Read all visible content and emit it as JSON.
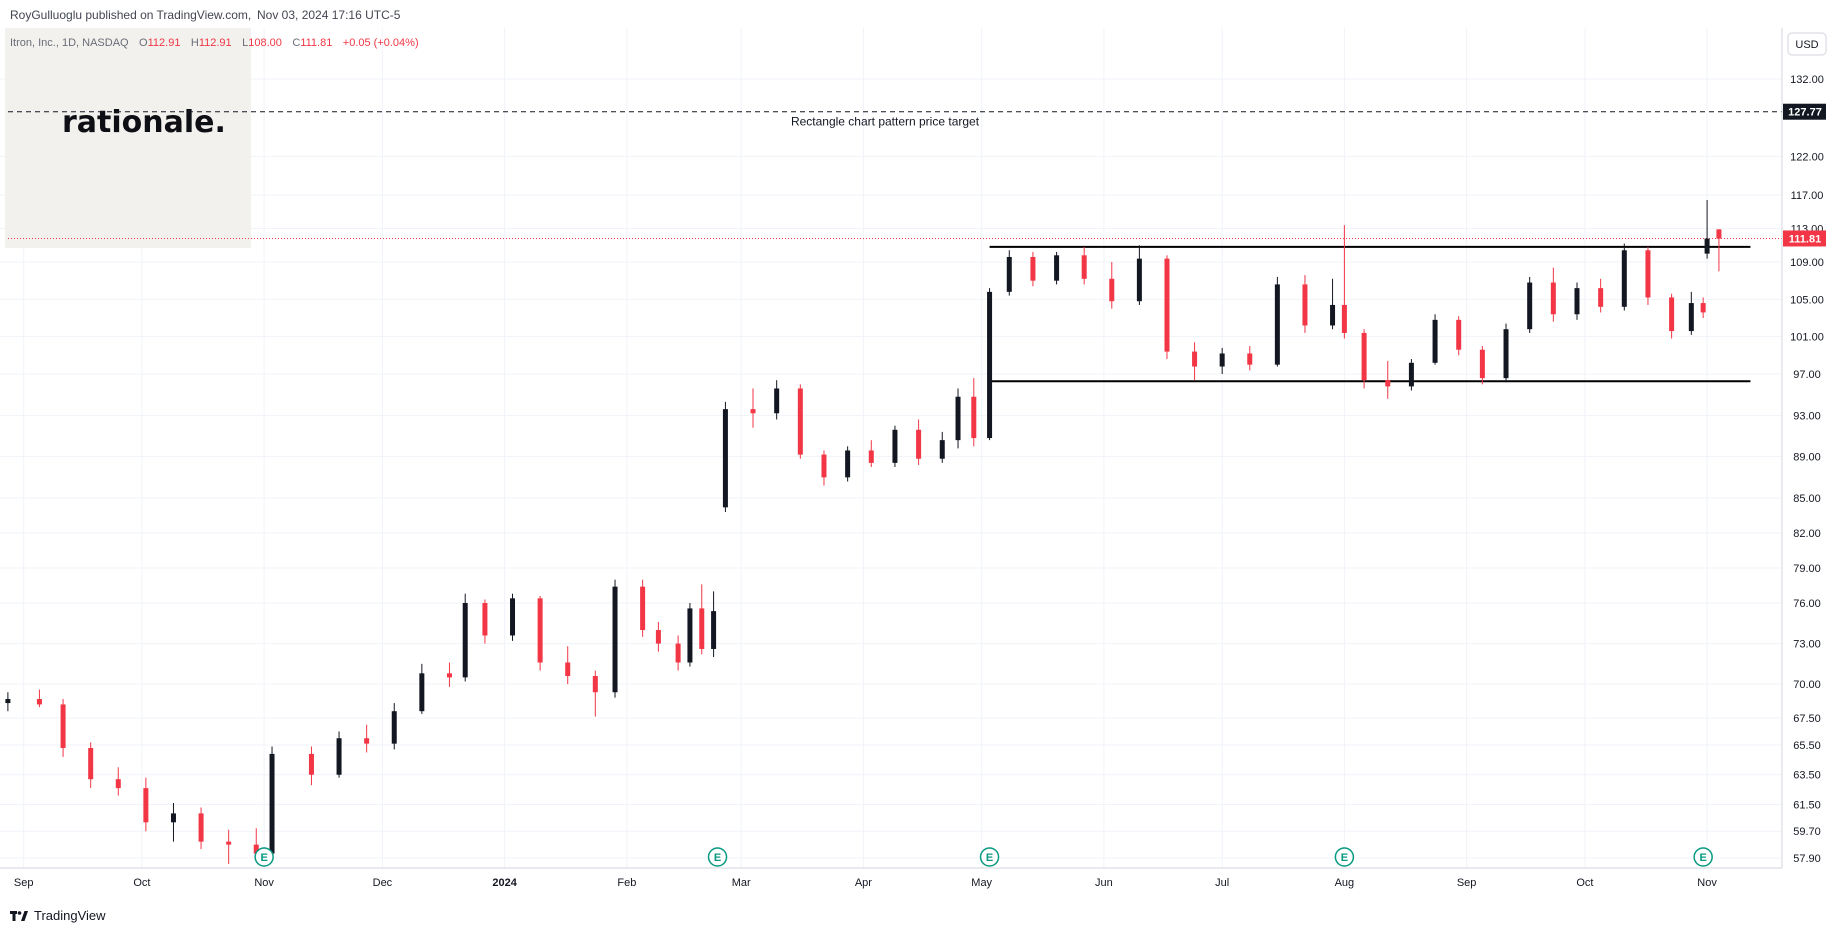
{
  "header": {
    "publisher": "RoyGulluoglu published on TradingView.com,",
    "timestamp": "Nov 03, 2024 17:16 UTC-5"
  },
  "legend": {
    "symbol": "Itron, Inc., 1D, NASDAQ",
    "o_label": "O",
    "o_value": "112.91",
    "h_label": "H",
    "h_value": "112.91",
    "l_label": "L",
    "l_value": "108.00",
    "c_label": "C",
    "c_value": "111.81",
    "change": "+0.05 (+0.04%)"
  },
  "watermark": {
    "text": "rationale."
  },
  "currency": "USD",
  "footer": {
    "brand": "TradingView"
  },
  "colors": {
    "up": "#131722",
    "down": "#f23645",
    "price_line": "#f23645",
    "grid": "#f0f3fa"
  },
  "chart_data": {
    "type": "candlestick",
    "x_range": [
      "2023-08-26",
      "2024-11-20"
    ],
    "y_ticks": [
      "57.90",
      "59.70",
      "61.50",
      "63.50",
      "65.50",
      "67.50",
      "70.00",
      "73.00",
      "76.00",
      "79.00",
      "82.00",
      "85.00",
      "89.00",
      "93.00",
      "97.00",
      "101.00",
      "105.00",
      "109.00",
      "113.00",
      "117.00",
      "122.00",
      "132.00"
    ],
    "x_ticks": [
      {
        "label": "Sep",
        "date": "2023-09-01",
        "bold": false
      },
      {
        "label": "Oct",
        "date": "2023-10-01",
        "bold": false
      },
      {
        "label": "Nov",
        "date": "2023-11-01",
        "bold": false
      },
      {
        "label": "Dec",
        "date": "2023-12-01",
        "bold": false
      },
      {
        "label": "2024",
        "date": "2024-01-01",
        "bold": true
      },
      {
        "label": "Feb",
        "date": "2024-02-01",
        "bold": false
      },
      {
        "label": "Mar",
        "date": "2024-03-01",
        "bold": false
      },
      {
        "label": "Apr",
        "date": "2024-04-01",
        "bold": false
      },
      {
        "label": "May",
        "date": "2024-05-01",
        "bold": false
      },
      {
        "label": "Jun",
        "date": "2024-06-01",
        "bold": false
      },
      {
        "label": "Jul",
        "date": "2024-07-01",
        "bold": false
      },
      {
        "label": "Aug",
        "date": "2024-08-01",
        "bold": false
      },
      {
        "label": "Sep",
        "date": "2024-09-01",
        "bold": false
      },
      {
        "label": "Oct",
        "date": "2024-10-01",
        "bold": false
      },
      {
        "label": "Nov",
        "date": "2024-11-01",
        "bold": false
      }
    ],
    "last_price": 111.81,
    "last_price_label": "111.81",
    "target": {
      "price": 127.77,
      "label": "127.77",
      "text": "Rectangle chart pattern price target"
    },
    "rectangle": {
      "start": "2024-05-03",
      "end": "2024-11-12",
      "top": 110.8,
      "bottom": 96.3
    },
    "earnings": [
      {
        "date": "2023-11-01",
        "label": "E"
      },
      {
        "date": "2024-02-24",
        "label": "E"
      },
      {
        "date": "2024-05-03",
        "label": "E"
      },
      {
        "date": "2024-08-01",
        "label": "E"
      },
      {
        "date": "2024-10-31",
        "label": "E"
      }
    ],
    "series": [
      {
        "date": "2023-08-28",
        "open": 68.6,
        "high": 69.4,
        "low": 68.0,
        "close": 68.9
      },
      {
        "date": "2023-09-05",
        "open": 68.9,
        "high": 69.6,
        "low": 68.3,
        "close": 68.5
      },
      {
        "date": "2023-09-11",
        "open": 68.5,
        "high": 68.9,
        "low": 64.7,
        "close": 65.3
      },
      {
        "date": "2023-09-18",
        "open": 65.3,
        "high": 65.7,
        "low": 62.6,
        "close": 63.2
      },
      {
        "date": "2023-09-25",
        "open": 63.2,
        "high": 64.0,
        "low": 62.1,
        "close": 62.6
      },
      {
        "date": "2023-10-02",
        "open": 62.6,
        "high": 63.3,
        "low": 59.7,
        "close": 60.3
      },
      {
        "date": "2023-10-09",
        "open": 60.3,
        "high": 61.6,
        "low": 59.0,
        "close": 60.9
      },
      {
        "date": "2023-10-16",
        "open": 60.9,
        "high": 61.3,
        "low": 58.5,
        "close": 59.0
      },
      {
        "date": "2023-10-23",
        "open": 59.0,
        "high": 59.8,
        "low": 57.5,
        "close": 58.8
      },
      {
        "date": "2023-10-30",
        "open": 58.8,
        "high": 59.9,
        "low": 57.7,
        "close": 58.2
      },
      {
        "date": "2023-11-03",
        "open": 58.2,
        "high": 65.4,
        "low": 58.0,
        "close": 64.9
      },
      {
        "date": "2023-11-13",
        "open": 64.9,
        "high": 65.4,
        "low": 62.8,
        "close": 63.5
      },
      {
        "date": "2023-11-20",
        "open": 63.5,
        "high": 66.5,
        "low": 63.3,
        "close": 66.0
      },
      {
        "date": "2023-11-27",
        "open": 66.0,
        "high": 67.0,
        "low": 65.0,
        "close": 65.6
      },
      {
        "date": "2023-12-04",
        "open": 65.6,
        "high": 68.6,
        "low": 65.2,
        "close": 68.0
      },
      {
        "date": "2023-12-11",
        "open": 68.0,
        "high": 71.5,
        "low": 67.8,
        "close": 70.8
      },
      {
        "date": "2023-12-18",
        "open": 70.8,
        "high": 71.6,
        "low": 69.8,
        "close": 70.5
      },
      {
        "date": "2023-12-22",
        "open": 70.5,
        "high": 76.8,
        "low": 70.2,
        "close": 76.0
      },
      {
        "date": "2023-12-27",
        "open": 76.0,
        "high": 76.3,
        "low": 73.0,
        "close": 73.6
      },
      {
        "date": "2024-01-03",
        "open": 73.6,
        "high": 76.8,
        "low": 73.2,
        "close": 76.4
      },
      {
        "date": "2024-01-10",
        "open": 76.4,
        "high": 76.6,
        "low": 71.0,
        "close": 71.6
      },
      {
        "date": "2024-01-17",
        "open": 71.6,
        "high": 72.8,
        "low": 70.0,
        "close": 70.6
      },
      {
        "date": "2024-01-24",
        "open": 70.6,
        "high": 71.0,
        "low": 67.6,
        "close": 69.4
      },
      {
        "date": "2024-01-29",
        "open": 69.4,
        "high": 78.0,
        "low": 69.0,
        "close": 77.4
      },
      {
        "date": "2024-02-05",
        "open": 77.4,
        "high": 78.0,
        "low": 73.5,
        "close": 74.0
      },
      {
        "date": "2024-02-09",
        "open": 74.0,
        "high": 74.6,
        "low": 72.4,
        "close": 73.0
      },
      {
        "date": "2024-02-14",
        "open": 73.0,
        "high": 73.6,
        "low": 71.0,
        "close": 71.6
      },
      {
        "date": "2024-02-17",
        "open": 71.6,
        "high": 76.0,
        "low": 71.3,
        "close": 75.6
      },
      {
        "date": "2024-02-20",
        "open": 75.6,
        "high": 77.6,
        "low": 72.2,
        "close": 72.6
      },
      {
        "date": "2024-02-23",
        "open": 72.6,
        "high": 77.0,
        "low": 72.0,
        "close": 75.4
      },
      {
        "date": "2024-02-26",
        "open": 84.2,
        "high": 94.3,
        "low": 83.8,
        "close": 93.6
      },
      {
        "date": "2024-03-04",
        "open": 93.6,
        "high": 95.6,
        "low": 91.8,
        "close": 93.2
      },
      {
        "date": "2024-03-10",
        "open": 93.2,
        "high": 96.4,
        "low": 92.6,
        "close": 95.6
      },
      {
        "date": "2024-03-16",
        "open": 95.6,
        "high": 96.0,
        "low": 88.8,
        "close": 89.2
      },
      {
        "date": "2024-03-22",
        "open": 89.2,
        "high": 89.6,
        "low": 86.2,
        "close": 87.0
      },
      {
        "date": "2024-03-28",
        "open": 87.0,
        "high": 90.0,
        "low": 86.6,
        "close": 89.6
      },
      {
        "date": "2024-04-03",
        "open": 89.6,
        "high": 90.6,
        "low": 88.0,
        "close": 88.4
      },
      {
        "date": "2024-04-09",
        "open": 88.4,
        "high": 92.0,
        "low": 88.0,
        "close": 91.6
      },
      {
        "date": "2024-04-15",
        "open": 91.6,
        "high": 92.6,
        "low": 88.2,
        "close": 88.8
      },
      {
        "date": "2024-04-21",
        "open": 88.8,
        "high": 91.4,
        "low": 88.4,
        "close": 90.6
      },
      {
        "date": "2024-04-25",
        "open": 90.6,
        "high": 95.6,
        "low": 89.8,
        "close": 94.8
      },
      {
        "date": "2024-04-29",
        "open": 94.8,
        "high": 96.6,
        "low": 90.0,
        "close": 90.8
      },
      {
        "date": "2024-05-03",
        "open": 90.8,
        "high": 106.2,
        "low": 90.6,
        "close": 105.8
      },
      {
        "date": "2024-05-08",
        "open": 105.8,
        "high": 110.4,
        "low": 105.4,
        "close": 109.6
      },
      {
        "date": "2024-05-14",
        "open": 109.6,
        "high": 110.2,
        "low": 106.4,
        "close": 107.0
      },
      {
        "date": "2024-05-20",
        "open": 107.0,
        "high": 110.2,
        "low": 106.6,
        "close": 109.8
      },
      {
        "date": "2024-05-27",
        "open": 109.8,
        "high": 110.8,
        "low": 106.6,
        "close": 107.2
      },
      {
        "date": "2024-06-03",
        "open": 107.2,
        "high": 109.0,
        "low": 104.0,
        "close": 104.8
      },
      {
        "date": "2024-06-10",
        "open": 104.8,
        "high": 111.0,
        "low": 104.4,
        "close": 109.4
      },
      {
        "date": "2024-06-17",
        "open": 109.4,
        "high": 109.8,
        "low": 98.6,
        "close": 99.4
      },
      {
        "date": "2024-06-24",
        "open": 99.4,
        "high": 100.4,
        "low": 96.4,
        "close": 97.8
      },
      {
        "date": "2024-07-01",
        "open": 97.8,
        "high": 99.8,
        "low": 97.0,
        "close": 99.2
      },
      {
        "date": "2024-07-08",
        "open": 99.2,
        "high": 100.0,
        "low": 97.4,
        "close": 98.0
      },
      {
        "date": "2024-07-15",
        "open": 98.0,
        "high": 107.4,
        "low": 97.8,
        "close": 106.6
      },
      {
        "date": "2024-07-22",
        "open": 106.6,
        "high": 107.6,
        "low": 101.4,
        "close": 102.2
      },
      {
        "date": "2024-07-29",
        "open": 102.2,
        "high": 107.2,
        "low": 101.8,
        "close": 104.4
      },
      {
        "date": "2024-08-01",
        "open": 104.4,
        "high": 113.4,
        "low": 100.8,
        "close": 101.4
      },
      {
        "date": "2024-08-06",
        "open": 101.4,
        "high": 101.8,
        "low": 95.6,
        "close": 96.4
      },
      {
        "date": "2024-08-12",
        "open": 96.4,
        "high": 98.4,
        "low": 94.6,
        "close": 95.8
      },
      {
        "date": "2024-08-18",
        "open": 95.8,
        "high": 98.6,
        "low": 95.4,
        "close": 98.2
      },
      {
        "date": "2024-08-24",
        "open": 98.2,
        "high": 103.4,
        "low": 98.0,
        "close": 102.8
      },
      {
        "date": "2024-08-30",
        "open": 102.8,
        "high": 103.2,
        "low": 99.0,
        "close": 99.6
      },
      {
        "date": "2024-09-05",
        "open": 99.6,
        "high": 100.0,
        "low": 96.0,
        "close": 96.6
      },
      {
        "date": "2024-09-11",
        "open": 96.6,
        "high": 102.4,
        "low": 96.2,
        "close": 101.8
      },
      {
        "date": "2024-09-17",
        "open": 101.8,
        "high": 107.4,
        "low": 101.4,
        "close": 106.8
      },
      {
        "date": "2024-09-23",
        "open": 106.8,
        "high": 108.4,
        "low": 102.6,
        "close": 103.4
      },
      {
        "date": "2024-09-29",
        "open": 103.4,
        "high": 106.8,
        "low": 102.8,
        "close": 106.2
      },
      {
        "date": "2024-10-05",
        "open": 106.2,
        "high": 107.2,
        "low": 103.6,
        "close": 104.2
      },
      {
        "date": "2024-10-11",
        "open": 104.2,
        "high": 111.2,
        "low": 103.8,
        "close": 110.4
      },
      {
        "date": "2024-10-17",
        "open": 110.4,
        "high": 110.8,
        "low": 104.4,
        "close": 105.2
      },
      {
        "date": "2024-10-23",
        "open": 105.2,
        "high": 105.6,
        "low": 100.8,
        "close": 101.6
      },
      {
        "date": "2024-10-28",
        "open": 101.6,
        "high": 105.8,
        "low": 101.2,
        "close": 104.6
      },
      {
        "date": "2024-10-31",
        "open": 104.6,
        "high": 105.2,
        "low": 103.0,
        "close": 103.6
      },
      {
        "date": "2024-11-01",
        "open": 110.0,
        "high": 116.4,
        "low": 109.4,
        "close": 111.8
      },
      {
        "date": "2024-11-04",
        "open": 112.9,
        "high": 112.9,
        "low": 108.0,
        "close": 111.8
      }
    ]
  }
}
